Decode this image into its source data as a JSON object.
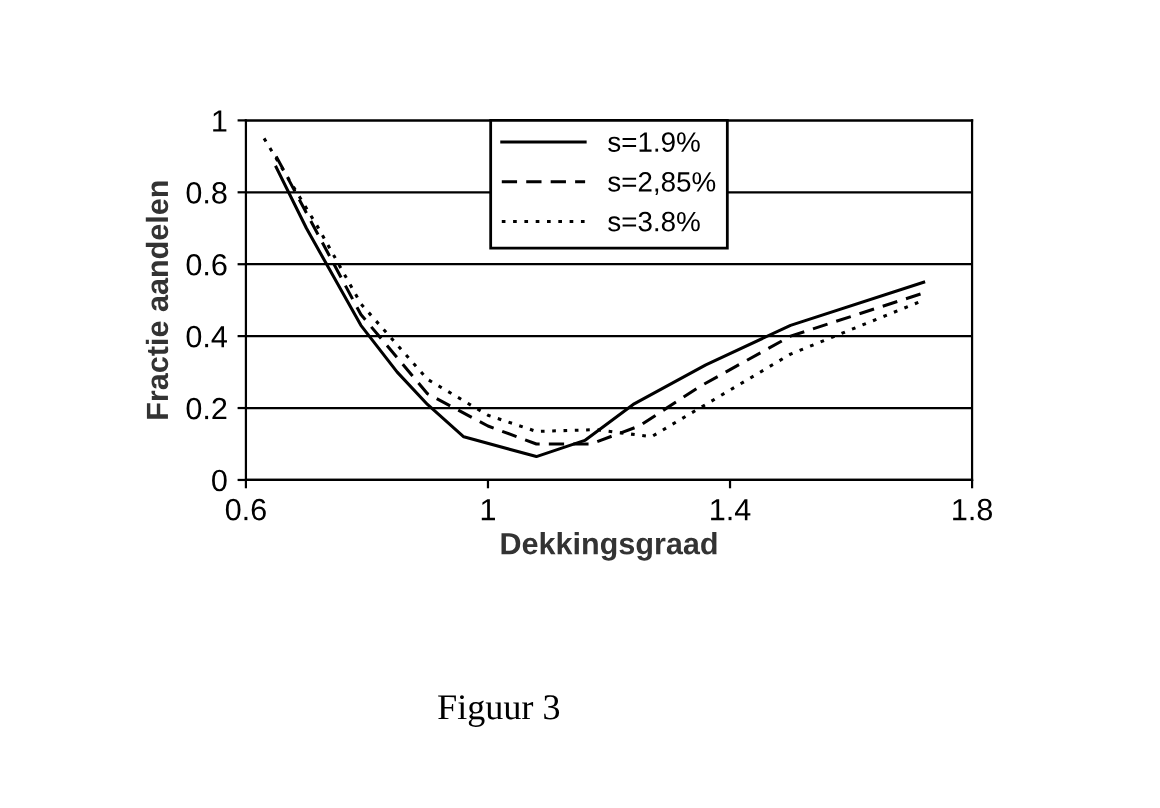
{
  "chart_data": {
    "type": "line",
    "xlabel": "Dekkingsgraad",
    "ylabel": "Fractie aandelen",
    "xlim": [
      0.6,
      1.8
    ],
    "xticks": [
      0.6,
      1,
      1.4,
      1.8
    ],
    "ylim": [
      0,
      1
    ],
    "yticks": [
      0,
      0.2,
      0.4,
      0.6,
      0.8,
      1
    ],
    "grid": "y",
    "legend": "top",
    "marker": "none",
    "annotations": [
      "Figuur 3"
    ],
    "series": [
      {
        "name": "s=1.9%",
        "color": "#000000",
        "line_style": "solid",
        "x": [
          0.65,
          0.7,
          0.79,
          0.85,
          0.9,
          0.96,
          1.08,
          1.16,
          1.24,
          1.36,
          1.5,
          1.72
        ],
        "values": [
          0.87,
          0.7,
          0.43,
          0.3,
          0.21,
          0.12,
          0.065,
          0.11,
          0.21,
          0.32,
          0.43,
          0.55
        ]
      },
      {
        "name": "s=2,85%",
        "color": "#000000",
        "line_style": "dashed",
        "x": [
          0.65,
          0.72,
          0.79,
          0.9,
          1.0,
          1.08,
          1.17,
          1.25,
          1.35,
          1.5,
          1.72
        ],
        "values": [
          0.9,
          0.68,
          0.46,
          0.24,
          0.15,
          0.1,
          0.1,
          0.15,
          0.26,
          0.4,
          0.52
        ]
      },
      {
        "name": "s=3.8%",
        "color": "#000000",
        "line_style": "dotted",
        "x": [
          0.63,
          0.72,
          0.79,
          0.9,
          1.0,
          1.08,
          1.18,
          1.27,
          1.37,
          1.5,
          1.72
        ],
        "values": [
          0.95,
          0.7,
          0.49,
          0.28,
          0.18,
          0.135,
          0.14,
          0.12,
          0.22,
          0.35,
          0.5
        ]
      }
    ]
  }
}
